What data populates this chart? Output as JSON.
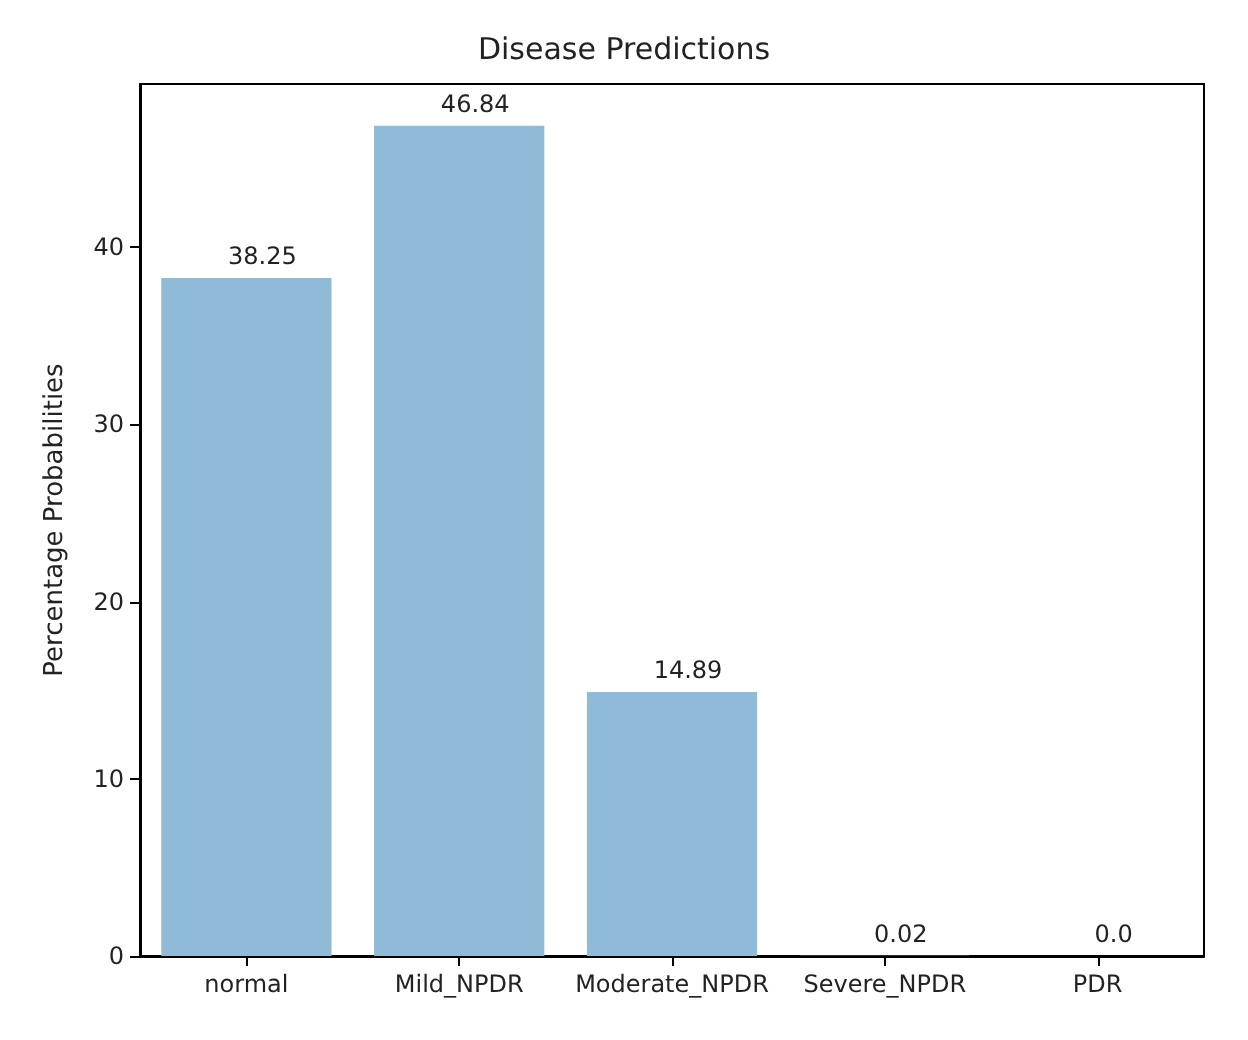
{
  "chart_data": {
    "type": "bar",
    "title": "Disease Predictions",
    "ylabel": "Percentage Probabilities",
    "categories": [
      "normal",
      "Mild_NPDR",
      "Moderate_NPDR",
      "Severe_NPDR",
      "PDR"
    ],
    "values": [
      38.25,
      46.84,
      14.89,
      0.02,
      0.0
    ],
    "value_labels": [
      "38.25",
      "46.84",
      "14.89",
      "0.02",
      "0.0"
    ],
    "color": "#8fbbd9",
    "ylim": [
      0,
      49.2
    ],
    "yticks": [
      0,
      10,
      20,
      30,
      40
    ],
    "grid": false
  }
}
